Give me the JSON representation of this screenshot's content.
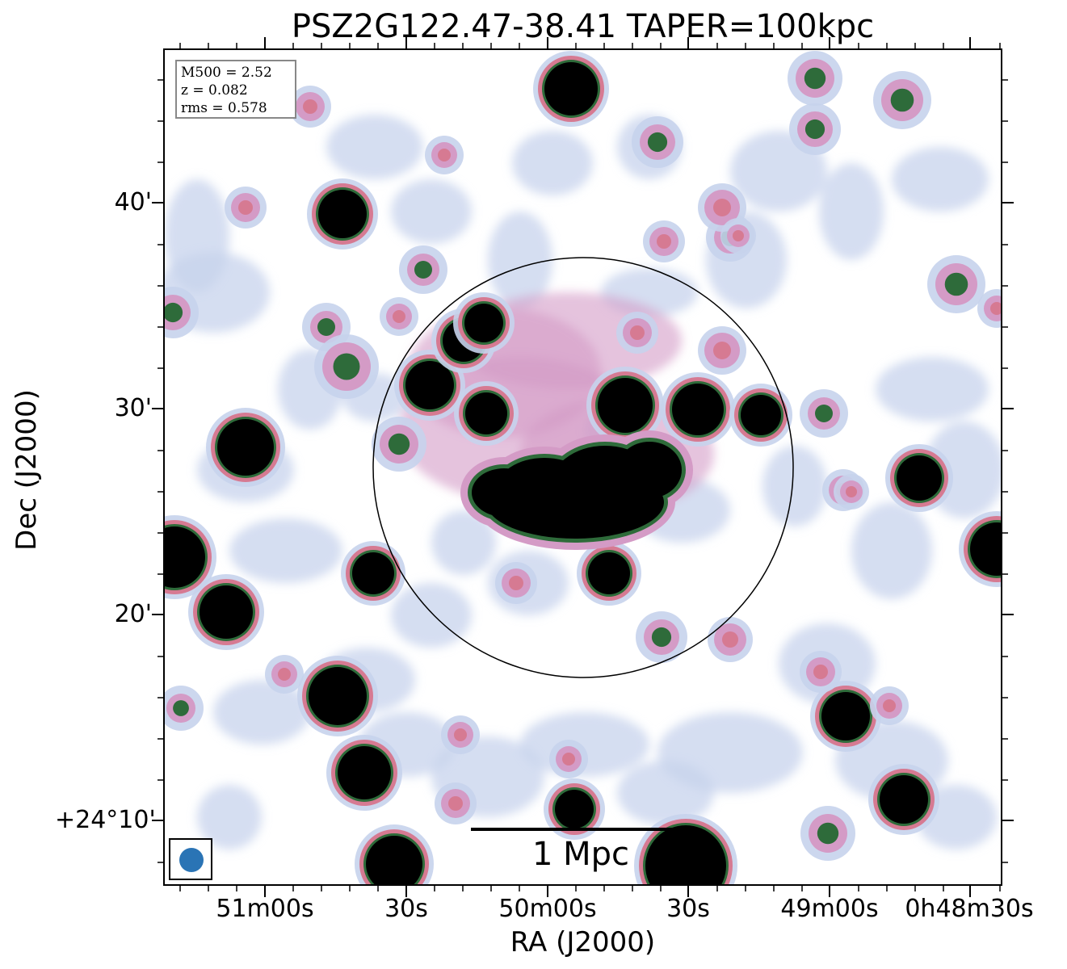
{
  "title": "PSZ2G122.47-38.41 TAPER=100kpc",
  "info": {
    "m500": "M500 = 2.52",
    "z": "z = 0.082",
    "rms": "rms = 0.578"
  },
  "scalebar_label": "1 Mpc",
  "axes": {
    "xlabel": "RA (J2000)",
    "ylabel": "Dec (J2000)",
    "xticks": [
      "51m00s",
      "30s",
      "50m00s",
      "30s",
      "49m00s",
      "0h48m30s"
    ],
    "yticks": [
      "40'",
      "30'",
      "20'",
      "+24°10'"
    ]
  },
  "colors": {
    "faint": "#c7d3ec",
    "mid": "#d49bc6",
    "pink": "#d67a92",
    "green": "#2e6b3a",
    "core": "#000000",
    "beam": "#2a74b5"
  }
}
